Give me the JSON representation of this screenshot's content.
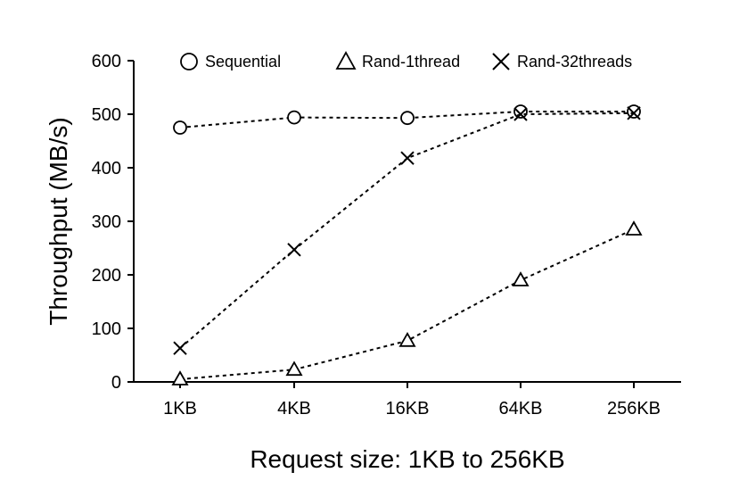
{
  "chart_data": {
    "type": "line",
    "xlabel": "Request size: 1KB to 256KB",
    "ylabel": "Throughput (MB/s)",
    "categories": [
      "1KB",
      "4KB",
      "16KB",
      "64KB",
      "256KB"
    ],
    "ylim": [
      0,
      600
    ],
    "yticks": [
      0,
      100,
      200,
      300,
      400,
      500,
      600
    ],
    "grid": false,
    "legend_position": "top",
    "series": [
      {
        "name": "Sequential",
        "marker": "circle",
        "values": [
          475,
          494,
          493,
          505,
          505
        ]
      },
      {
        "name": "Rand-1thread",
        "marker": "triangle",
        "values": [
          5,
          23,
          77,
          190,
          285
        ]
      },
      {
        "name": "Rand-32threads",
        "marker": "x",
        "values": [
          63,
          247,
          418,
          500,
          502
        ]
      }
    ]
  }
}
